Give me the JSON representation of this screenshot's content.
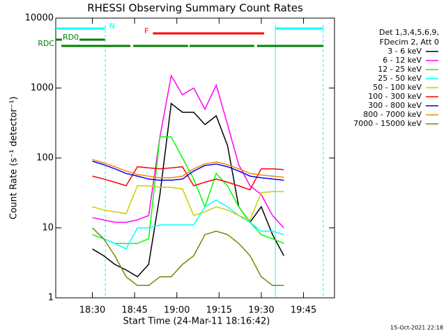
{
  "chart_data": {
    "type": "line",
    "title": "RHESSI Observing Summary Count Rates",
    "xlabel": "Start Time (24-Mar-11 18:16:42)",
    "ylabel": "Count Rate (s⁻¹ detector⁻¹)",
    "footer": "15-Oct-2021 22:18",
    "log_y": true,
    "xlim": [
      1097,
      1196
    ],
    "ylim": [
      1,
      10000
    ],
    "xticks": [
      {
        "value": 1110,
        "label": "18:30"
      },
      {
        "value": 1125,
        "label": "18:45"
      },
      {
        "value": 1140,
        "label": "19:00"
      },
      {
        "value": 1155,
        "label": "19:15"
      },
      {
        "value": 1170,
        "label": "19:30"
      },
      {
        "value": 1185,
        "label": "19:45"
      }
    ],
    "yticks": [
      1,
      10,
      100,
      1000,
      10000
    ],
    "legend_title": [
      "Det 1,3,4,5,6,9,",
      "FDecim 2, Att 0"
    ],
    "x": [
      1110,
      1114,
      1118,
      1122,
      1126,
      1130,
      1134,
      1138,
      1142,
      1146,
      1150,
      1154,
      1158,
      1162,
      1166,
      1170,
      1174,
      1178
    ],
    "series": [
      {
        "name": "3 - 6 keV",
        "color": "#000000",
        "values": [
          5,
          4,
          3,
          2.5,
          2,
          3,
          30,
          600,
          450,
          450,
          300,
          400,
          150,
          20,
          12,
          20,
          8,
          4
        ]
      },
      {
        "name": "6 - 12 keV",
        "color": "#ff00ff",
        "values": [
          14,
          13,
          12,
          12,
          13,
          15,
          200,
          1500,
          800,
          1000,
          500,
          1100,
          300,
          80,
          40,
          30,
          15,
          10
        ]
      },
      {
        "name": "12 - 25 keV",
        "color": "#00ff00",
        "values": [
          8,
          7,
          6,
          6,
          6,
          7,
          200,
          200,
          100,
          50,
          20,
          60,
          40,
          20,
          12,
          8,
          7,
          6
        ]
      },
      {
        "name": "25 - 50 keV",
        "color": "#00ffff",
        "values": [
          10,
          7,
          6,
          5,
          10,
          10,
          11,
          11,
          11,
          11,
          20,
          25,
          20,
          15,
          12,
          9,
          9,
          8
        ]
      },
      {
        "name": "50 - 100 keV",
        "color": "#cccc00",
        "values": [
          20,
          18,
          17,
          16,
          40,
          40,
          38,
          38,
          36,
          15,
          17,
          20,
          18,
          15,
          13,
          32,
          33,
          33
        ]
      },
      {
        "name": "100 - 300 keV",
        "color": "#ff0000",
        "values": [
          55,
          50,
          45,
          40,
          75,
          72,
          70,
          72,
          75,
          40,
          45,
          50,
          45,
          40,
          35,
          70,
          70,
          68
        ]
      },
      {
        "name": "300 - 800 keV",
        "color": "#0000ff",
        "values": [
          90,
          80,
          70,
          60,
          55,
          50,
          48,
          48,
          50,
          65,
          78,
          82,
          75,
          65,
          55,
          52,
          50,
          48
        ]
      },
      {
        "name": "800 - 7000 keV",
        "color": "#ff8000",
        "values": [
          95,
          85,
          75,
          65,
          58,
          55,
          52,
          52,
          55,
          70,
          82,
          88,
          80,
          70,
          60,
          57,
          55,
          53
        ]
      },
      {
        "name": "7000 - 15000 keV",
        "color": "#808000",
        "values": [
          10,
          7,
          4,
          2,
          1.5,
          1.5,
          2,
          2,
          3,
          4,
          8,
          9,
          8,
          6,
          4,
          2,
          1.5,
          1.5
        ]
      }
    ],
    "flags": [
      {
        "label": "N",
        "color": "#00ffff",
        "intervals": [
          [
            1097,
            1114.5
          ],
          [
            1175,
            1192
          ]
        ]
      },
      {
        "label": "F",
        "color": "#ff0000",
        "intervals": [
          [
            1131.5,
            1171
          ]
        ]
      },
      {
        "label": "RD0",
        "color": "#008000",
        "intervals": [
          [
            1097,
            1114.5
          ]
        ]
      },
      {
        "label": "RDC",
        "color": "#008000",
        "intervals": [
          [
            1099,
            1123.5
          ],
          [
            1124.5,
            1144
          ],
          [
            1144.5,
            1167.5
          ],
          [
            1168.5,
            1192
          ]
        ]
      }
    ],
    "vlines": [
      {
        "x": 1114.6,
        "color": "#00ffff",
        "style": "dashed"
      },
      {
        "x": 1175,
        "color": "#00ffff",
        "style": "solid"
      },
      {
        "x": 1192,
        "color": "#00ffff",
        "style": "dashed"
      }
    ]
  }
}
